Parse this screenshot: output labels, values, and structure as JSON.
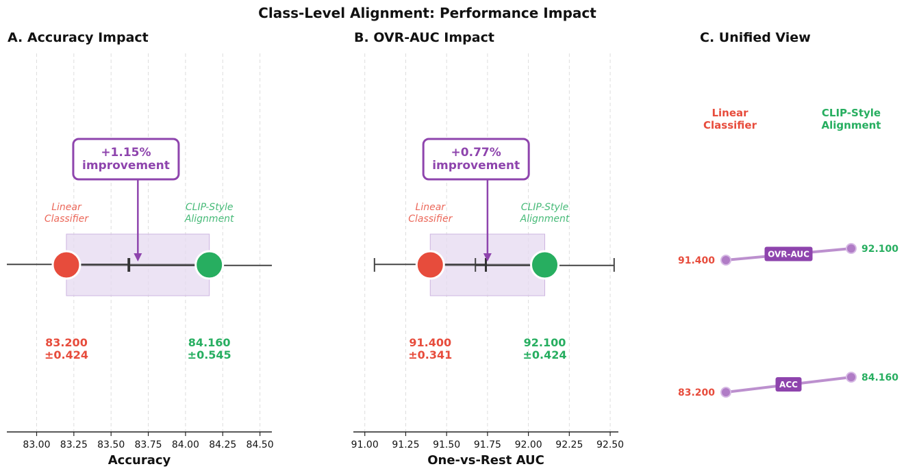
{
  "suptitle": "Class-Level Alignment: Performance Impact",
  "colors": {
    "linear": "#e74c3c",
    "clip": "#27ae60",
    "accent": "#8e44ad",
    "accent_light": "#b07cc6",
    "shade": "#e6d9f0",
    "axis": "#222222",
    "error": "#444444",
    "grid": "#dddddd"
  },
  "chart_data": [
    {
      "type": "scatter",
      "title": "A. Accuracy Impact",
      "xlabel": "Accuracy",
      "xlim": [
        82.8,
        84.58
      ],
      "xticks": [
        83.0,
        83.25,
        83.5,
        83.75,
        84.0,
        84.25,
        84.5
      ],
      "xtick_labels": [
        "83.00",
        "83.25",
        "83.50",
        "83.75",
        "84.00",
        "84.25",
        "84.50"
      ],
      "series": [
        {
          "name": "Linear Classifier",
          "name_lines": [
            "Linear",
            "Classifier"
          ],
          "value": 83.2,
          "std": 0.424,
          "value_label": "83.200",
          "std_label": "±0.424"
        },
        {
          "name": "CLIP-Style Alignment",
          "name_lines": [
            "CLIP-Style",
            "Alignment"
          ],
          "value": 84.16,
          "std": 0.545,
          "value_label": "84.160",
          "std_label": "±0.545"
        }
      ],
      "shaded_range": [
        83.2,
        84.16
      ],
      "midpoint": 83.62,
      "annotation": {
        "lines": [
          "+1.15%",
          "improvement"
        ],
        "box_x": 83.6,
        "arrow_x": 83.68
      }
    },
    {
      "type": "scatter",
      "title": "B. OVR-AUC Impact",
      "xlabel": "One-vs-Rest AUC",
      "xlim": [
        90.93,
        92.55
      ],
      "xticks": [
        91.0,
        91.25,
        91.5,
        91.75,
        92.0,
        92.25,
        92.5
      ],
      "xtick_labels": [
        "91.00",
        "91.25",
        "91.50",
        "91.75",
        "92.00",
        "92.25",
        "92.50"
      ],
      "series": [
        {
          "name": "Linear Classifier",
          "name_lines": [
            "Linear",
            "Classifier"
          ],
          "value": 91.4,
          "std": 0.341,
          "value_label": "91.400",
          "std_label": "±0.341"
        },
        {
          "name": "CLIP-Style Alignment",
          "name_lines": [
            "CLIP-Style",
            "Alignment"
          ],
          "value": 92.1,
          "std": 0.424,
          "value_label": "92.100",
          "std_label": "±0.424"
        }
      ],
      "shaded_range": [
        91.4,
        92.1
      ],
      "midpoint": 91.74,
      "annotation": {
        "lines": [
          "+0.77%",
          "improvement"
        ],
        "box_x": 91.68,
        "arrow_x": 91.75
      }
    },
    {
      "type": "line",
      "title": "C. Unified View",
      "column_labels": [
        {
          "lines": [
            "Linear",
            "Classifier"
          ]
        },
        {
          "lines": [
            "CLIP-Style",
            "Alignment"
          ]
        }
      ],
      "metrics": [
        {
          "name": "OVR-AUC",
          "left": 91.4,
          "right": 92.1,
          "left_label": "91.400",
          "right_label": "92.100"
        },
        {
          "name": "ACC",
          "left": 83.2,
          "right": 84.16,
          "left_label": "83.200",
          "right_label": "84.160"
        }
      ]
    }
  ]
}
